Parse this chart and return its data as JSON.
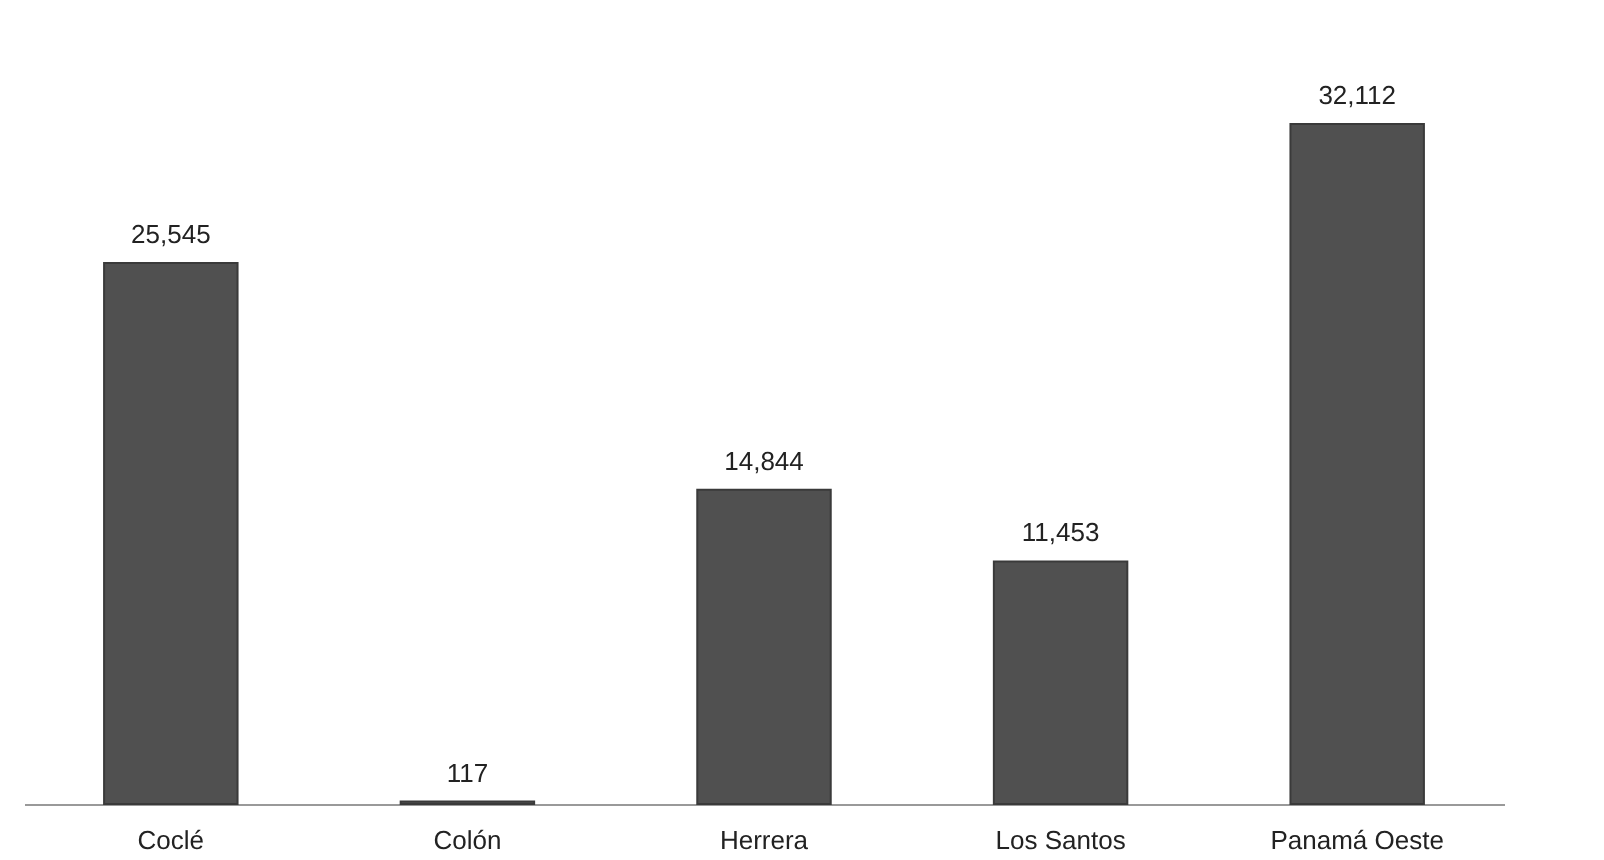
{
  "chart_data": {
    "type": "bar",
    "categories": [
      "Coclé",
      "Colón",
      "Herrera",
      "Los Santos",
      "Panamá Oeste"
    ],
    "values": [
      25545,
      117,
      14844,
      11453,
      32112
    ],
    "value_labels": [
      "25,545",
      "117",
      "14,844",
      "11,453",
      "32,112"
    ],
    "color": "#505050"
  }
}
